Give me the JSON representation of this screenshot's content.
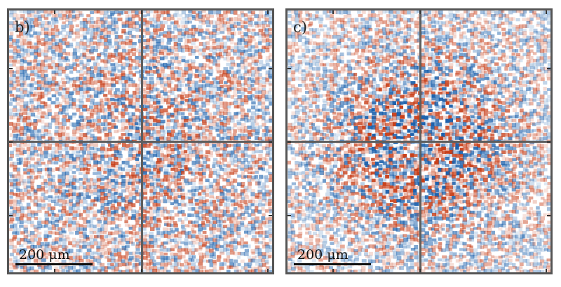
{
  "panels": [
    {
      "label": "b)",
      "scalebar": "200 μm",
      "pattern": "diffuse",
      "seed": 17
    },
    {
      "label": "c)",
      "scalebar": "200 μm",
      "pattern": "speckle-ring",
      "seed": 91
    }
  ],
  "colors": {
    "positive": "#c8401a",
    "negative": "#1d62ad",
    "neutral": "#ffffff",
    "frame": "#555555",
    "crosshair": "#5e5e5e"
  }
}
